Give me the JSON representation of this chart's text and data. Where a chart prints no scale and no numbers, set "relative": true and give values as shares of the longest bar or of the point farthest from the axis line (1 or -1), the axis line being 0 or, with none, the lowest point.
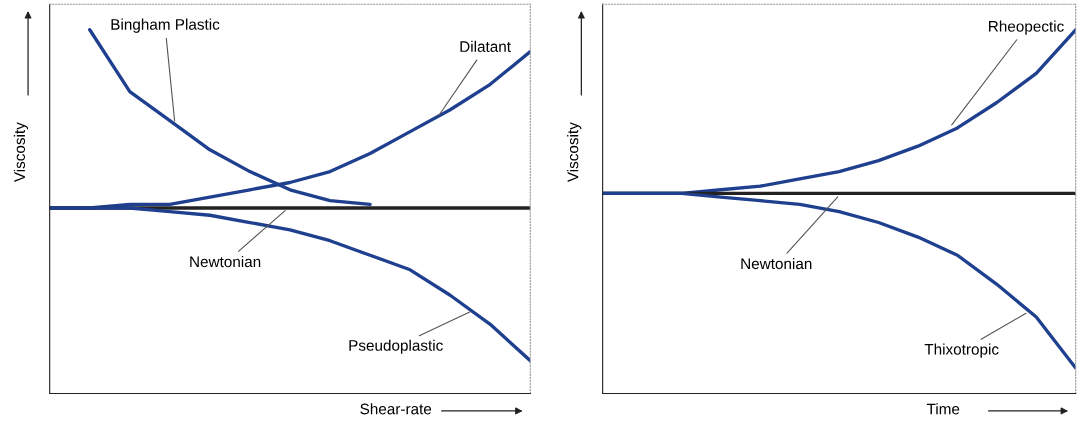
{
  "chart_data": [
    {
      "type": "line",
      "xlabel": "Shear-rate",
      "ylabel": "Viscosity",
      "relative": true,
      "tick_labels": false,
      "legend": false,
      "marker": "none",
      "line_style": "solid",
      "categories": [
        null,
        null,
        null,
        null,
        null,
        null,
        null,
        null,
        null,
        null,
        null,
        null,
        null
      ],
      "series": [
        {
          "name": "Bingham Plastic",
          "color": "#1f3f8f",
          "values": [
            null,
            1.0,
            0.83,
            0.75,
            0.67,
            0.61,
            0.56,
            0.53,
            0.52,
            null,
            null,
            null,
            null
          ]
        },
        {
          "name": "Dilatant",
          "color": "#1f3f8f",
          "values": [
            0.51,
            0.51,
            0.52,
            0.52,
            0.54,
            0.56,
            0.58,
            0.61,
            0.66,
            0.72,
            0.78,
            0.85,
            0.94
          ]
        },
        {
          "name": "Newtonian",
          "color": "#222222",
          "values": [
            0.51,
            0.51,
            0.51,
            0.51,
            0.51,
            0.51,
            0.51,
            0.51,
            0.51,
            0.51,
            0.51,
            0.51,
            0.51
          ]
        },
        {
          "name": "Pseudoplastic",
          "color": "#1f3f8f",
          "values": [
            0.51,
            0.51,
            0.51,
            0.5,
            0.49,
            0.47,
            0.45,
            0.42,
            0.38,
            0.34,
            0.27,
            0.19,
            0.09
          ]
        }
      ]
    },
    {
      "type": "line",
      "xlabel": "Time",
      "ylabel": "Viscosity",
      "relative": true,
      "tick_labels": false,
      "legend": false,
      "marker": "none",
      "line_style": "solid",
      "categories": [
        null,
        null,
        null,
        null,
        null,
        null,
        null,
        null,
        null,
        null,
        null,
        null,
        null
      ],
      "series": [
        {
          "name": "Rheopectic",
          "color": "#1f3f8f",
          "values": [
            0.55,
            0.55,
            0.55,
            0.56,
            0.57,
            0.59,
            0.61,
            0.64,
            0.68,
            0.73,
            0.8,
            0.88,
            1.0
          ]
        },
        {
          "name": "Newtonian",
          "color": "#222222",
          "values": [
            0.55,
            0.55,
            0.55,
            0.55,
            0.55,
            0.55,
            0.55,
            0.55,
            0.55,
            0.55,
            0.55,
            0.55,
            0.55
          ]
        },
        {
          "name": "Thixotropic",
          "color": "#1f3f8f",
          "values": [
            0.55,
            0.55,
            0.55,
            0.54,
            0.53,
            0.52,
            0.5,
            0.47,
            0.43,
            0.38,
            0.3,
            0.21,
            0.07
          ]
        }
      ]
    }
  ]
}
